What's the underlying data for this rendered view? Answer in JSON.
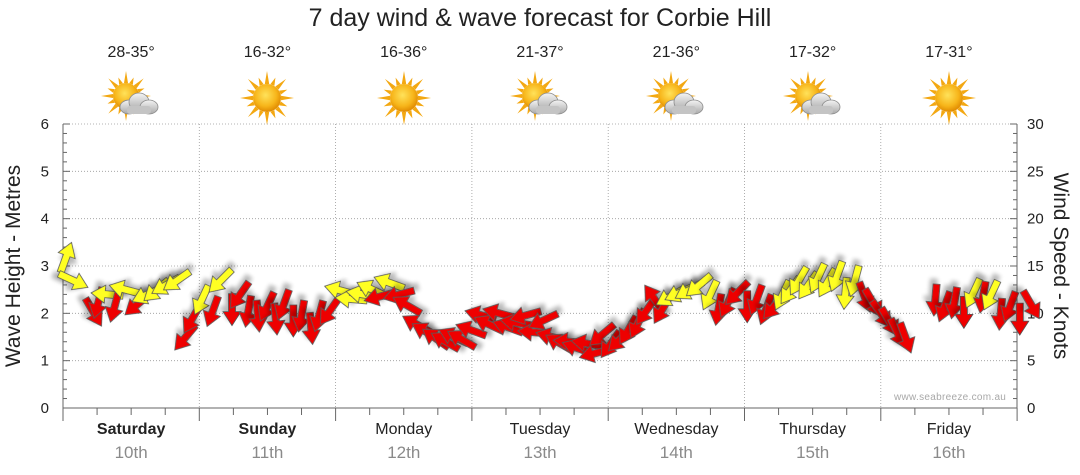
{
  "chart_data": {
    "type": "scatter",
    "title": "7 day wind & wave forecast for Corbie Hill",
    "y_left": {
      "label": "Wave Height - Metres",
      "min": 0,
      "max": 6,
      "ticks": [
        0,
        1,
        2,
        3,
        4,
        5,
        6
      ]
    },
    "y_right": {
      "label": "Wind Speed - Knots",
      "min": 0,
      "max": 30,
      "ticks": [
        0,
        5,
        10,
        15,
        20,
        25,
        30
      ]
    },
    "grid": true,
    "days": [
      {
        "name": "Saturday",
        "date": "10th",
        "temp": "28-35°",
        "weather_icon": "partly-cloudy-icon",
        "bold": true
      },
      {
        "name": "Sunday",
        "date": "11th",
        "temp": "16-32°",
        "weather_icon": "sunny-icon",
        "bold": true
      },
      {
        "name": "Monday",
        "date": "12th",
        "temp": "16-36°",
        "weather_icon": "sunny-icon",
        "bold": false
      },
      {
        "name": "Tuesday",
        "date": "13th",
        "temp": "21-37°",
        "weather_icon": "partly-cloudy-icon",
        "bold": false
      },
      {
        "name": "Wednesday",
        "date": "14th",
        "temp": "21-36°",
        "weather_icon": "partly-cloudy-icon",
        "bold": false
      },
      {
        "name": "Thursday",
        "date": "15th",
        "temp": "17-32°",
        "weather_icon": "partly-cloudy-icon",
        "bold": false
      },
      {
        "name": "Friday",
        "date": "16th",
        "temp": "17-31°",
        "weather_icon": "sunny-icon",
        "bold": false
      }
    ],
    "series": [
      {
        "name": "Wind (yellow = lighter, red = stronger)",
        "encoding": "arrows point in wind direction; vertical position = wind speed (knots, right axis)",
        "points": [
          {
            "day": 0.02,
            "knots": 15.8,
            "dir": 20,
            "color": "yellow"
          },
          {
            "day": 0.07,
            "knots": 13.5,
            "dir": 115,
            "color": "yellow"
          },
          {
            "day": 0.22,
            "knots": 10.2,
            "dir": 150,
            "color": "red"
          },
          {
            "day": 0.26,
            "knots": 11.2,
            "dir": 195,
            "color": "red"
          },
          {
            "day": 0.33,
            "knots": 12.0,
            "dir": 275,
            "color": "yellow"
          },
          {
            "day": 0.38,
            "knots": 10.8,
            "dir": 195,
            "color": "red"
          },
          {
            "day": 0.46,
            "knots": 12.5,
            "dir": 285,
            "color": "yellow"
          },
          {
            "day": 0.55,
            "knots": 11.0,
            "dir": 230,
            "color": "red"
          },
          {
            "day": 0.62,
            "knots": 12.0,
            "dir": 245,
            "color": "yellow"
          },
          {
            "day": 0.69,
            "knots": 12.5,
            "dir": 230,
            "color": "yellow"
          },
          {
            "day": 0.76,
            "knots": 13.0,
            "dir": 240,
            "color": "yellow"
          },
          {
            "day": 0.84,
            "knots": 13.5,
            "dir": 235,
            "color": "yellow"
          },
          {
            "day": 0.9,
            "knots": 7.5,
            "dir": 220,
            "color": "red"
          },
          {
            "day": 0.95,
            "knots": 9.5,
            "dir": 210,
            "color": "red"
          },
          {
            "day": 1.02,
            "knots": 11.5,
            "dir": 205,
            "color": "yellow"
          },
          {
            "day": 1.1,
            "knots": 10.3,
            "dir": 200,
            "color": "red"
          },
          {
            "day": 1.16,
            "knots": 13.5,
            "dir": 225,
            "color": "yellow"
          },
          {
            "day": 1.24,
            "knots": 10.5,
            "dir": 180,
            "color": "red"
          },
          {
            "day": 1.3,
            "knots": 12.0,
            "dir": 215,
            "color": "red"
          },
          {
            "day": 1.36,
            "knots": 10.3,
            "dir": 190,
            "color": "red"
          },
          {
            "day": 1.43,
            "knots": 9.8,
            "dir": 175,
            "color": "red"
          },
          {
            "day": 1.5,
            "knots": 10.8,
            "dir": 205,
            "color": "red"
          },
          {
            "day": 1.56,
            "knots": 9.5,
            "dir": 175,
            "color": "red"
          },
          {
            "day": 1.62,
            "knots": 11.0,
            "dir": 200,
            "color": "red"
          },
          {
            "day": 1.69,
            "knots": 9.3,
            "dir": 180,
            "color": "red"
          },
          {
            "day": 1.75,
            "knots": 9.8,
            "dir": 190,
            "color": "red"
          },
          {
            "day": 1.82,
            "knots": 8.5,
            "dir": 175,
            "color": "red"
          },
          {
            "day": 1.88,
            "knots": 9.8,
            "dir": 195,
            "color": "red"
          },
          {
            "day": 1.96,
            "knots": 10.3,
            "dir": 215,
            "color": "red"
          },
          {
            "day": 2.04,
            "knots": 12.4,
            "dir": 285,
            "color": "yellow"
          },
          {
            "day": 2.12,
            "knots": 11.5,
            "dir": 275,
            "color": "yellow"
          },
          {
            "day": 2.2,
            "knots": 12.0,
            "dir": 280,
            "color": "yellow"
          },
          {
            "day": 2.27,
            "knots": 12.5,
            "dir": 295,
            "color": "yellow"
          },
          {
            "day": 2.33,
            "knots": 11.8,
            "dir": 255,
            "color": "red"
          },
          {
            "day": 2.4,
            "knots": 13.2,
            "dir": 290,
            "color": "yellow"
          },
          {
            "day": 2.47,
            "knots": 12.0,
            "dir": 255,
            "color": "red"
          },
          {
            "day": 2.53,
            "knots": 10.8,
            "dir": 300,
            "color": "red"
          },
          {
            "day": 2.6,
            "knots": 8.8,
            "dir": 300,
            "color": "red"
          },
          {
            "day": 2.67,
            "knots": 8.0,
            "dir": 300,
            "color": "red"
          },
          {
            "day": 2.74,
            "knots": 7.3,
            "dir": 305,
            "color": "red"
          },
          {
            "day": 2.81,
            "knots": 7.0,
            "dir": 300,
            "color": "red"
          },
          {
            "day": 2.87,
            "knots": 7.5,
            "dir": 295,
            "color": "red"
          },
          {
            "day": 2.93,
            "knots": 7.2,
            "dir": 300,
            "color": "red"
          },
          {
            "day": 3.0,
            "knots": 8.2,
            "dir": 290,
            "color": "red"
          },
          {
            "day": 3.07,
            "knots": 9.8,
            "dir": 285,
            "color": "red"
          },
          {
            "day": 3.13,
            "knots": 8.8,
            "dir": 295,
            "color": "red"
          },
          {
            "day": 3.2,
            "knots": 10.0,
            "dir": 285,
            "color": "red"
          },
          {
            "day": 3.27,
            "knots": 8.5,
            "dir": 290,
            "color": "red"
          },
          {
            "day": 3.33,
            "knots": 9.0,
            "dir": 280,
            "color": "red"
          },
          {
            "day": 3.4,
            "knots": 9.8,
            "dir": 255,
            "color": "red"
          },
          {
            "day": 3.46,
            "knots": 8.0,
            "dir": 275,
            "color": "red"
          },
          {
            "day": 3.53,
            "knots": 9.3,
            "dir": 245,
            "color": "red"
          },
          {
            "day": 3.59,
            "knots": 7.5,
            "dir": 285,
            "color": "red"
          },
          {
            "day": 3.65,
            "knots": 6.8,
            "dir": 300,
            "color": "red"
          },
          {
            "day": 3.72,
            "knots": 7.0,
            "dir": 275,
            "color": "red"
          },
          {
            "day": 3.78,
            "knots": 6.3,
            "dir": 290,
            "color": "red"
          },
          {
            "day": 3.85,
            "knots": 6.8,
            "dir": 280,
            "color": "red"
          },
          {
            "day": 3.91,
            "knots": 5.8,
            "dir": 255,
            "color": "red"
          },
          {
            "day": 3.96,
            "knots": 7.8,
            "dir": 230,
            "color": "red"
          },
          {
            "day": 4.02,
            "knots": 6.8,
            "dir": 215,
            "color": "red"
          },
          {
            "day": 4.09,
            "knots": 7.3,
            "dir": 225,
            "color": "red"
          },
          {
            "day": 4.15,
            "knots": 8.3,
            "dir": 210,
            "color": "red"
          },
          {
            "day": 4.22,
            "knots": 9.0,
            "dir": 205,
            "color": "red"
          },
          {
            "day": 4.28,
            "knots": 10.3,
            "dir": 215,
            "color": "red"
          },
          {
            "day": 4.34,
            "knots": 11.5,
            "dir": 325,
            "color": "red"
          },
          {
            "day": 4.4,
            "knots": 10.5,
            "dir": 210,
            "color": "red"
          },
          {
            "day": 4.46,
            "knots": 11.8,
            "dir": 240,
            "color": "yellow"
          },
          {
            "day": 4.53,
            "knots": 12.2,
            "dir": 245,
            "color": "yellow"
          },
          {
            "day": 4.6,
            "knots": 12.5,
            "dir": 240,
            "color": "yellow"
          },
          {
            "day": 4.67,
            "knots": 13.0,
            "dir": 230,
            "color": "yellow"
          },
          {
            "day": 4.75,
            "knots": 12.0,
            "dir": 205,
            "color": "yellow"
          },
          {
            "day": 4.81,
            "knots": 10.5,
            "dir": 190,
            "color": "red"
          },
          {
            "day": 4.88,
            "knots": 11.2,
            "dir": 205,
            "color": "red"
          },
          {
            "day": 4.95,
            "knots": 12.2,
            "dir": 225,
            "color": "red"
          },
          {
            "day": 5.02,
            "knots": 10.8,
            "dir": 180,
            "color": "red"
          },
          {
            "day": 5.09,
            "knots": 11.5,
            "dir": 200,
            "color": "red"
          },
          {
            "day": 5.16,
            "knots": 10.5,
            "dir": 200,
            "color": "red"
          },
          {
            "day": 5.22,
            "knots": 10.8,
            "dir": 220,
            "color": "red"
          },
          {
            "day": 5.28,
            "knots": 12.0,
            "dir": 205,
            "color": "yellow"
          },
          {
            "day": 5.34,
            "knots": 12.5,
            "dir": 215,
            "color": "yellow"
          },
          {
            "day": 5.4,
            "knots": 13.5,
            "dir": 210,
            "color": "yellow"
          },
          {
            "day": 5.47,
            "knots": 13.0,
            "dir": 215,
            "color": "yellow"
          },
          {
            "day": 5.54,
            "knots": 13.8,
            "dir": 205,
            "color": "yellow"
          },
          {
            "day": 5.61,
            "knots": 13.3,
            "dir": 210,
            "color": "yellow"
          },
          {
            "day": 5.68,
            "knots": 14.0,
            "dir": 200,
            "color": "yellow"
          },
          {
            "day": 5.74,
            "knots": 12.2,
            "dir": 185,
            "color": "yellow"
          },
          {
            "day": 5.81,
            "knots": 13.5,
            "dir": 195,
            "color": "yellow"
          },
          {
            "day": 5.88,
            "knots": 11.8,
            "dir": 160,
            "color": "red"
          },
          {
            "day": 5.94,
            "knots": 11.2,
            "dir": 150,
            "color": "red"
          },
          {
            "day": 6.0,
            "knots": 10.0,
            "dir": 145,
            "color": "red"
          },
          {
            "day": 6.06,
            "knots": 9.2,
            "dir": 150,
            "color": "red"
          },
          {
            "day": 6.12,
            "knots": 8.0,
            "dir": 155,
            "color": "red"
          },
          {
            "day": 6.18,
            "knots": 7.5,
            "dir": 160,
            "color": "red"
          },
          {
            "day": 6.4,
            "knots": 11.5,
            "dir": 185,
            "color": "red"
          },
          {
            "day": 6.47,
            "knots": 10.8,
            "dir": 200,
            "color": "red"
          },
          {
            "day": 6.54,
            "knots": 11.2,
            "dir": 190,
            "color": "red"
          },
          {
            "day": 6.61,
            "knots": 10.2,
            "dir": 180,
            "color": "red"
          },
          {
            "day": 6.68,
            "knots": 12.2,
            "dir": 205,
            "color": "yellow"
          },
          {
            "day": 6.75,
            "knots": 11.8,
            "dir": 190,
            "color": "red"
          },
          {
            "day": 6.81,
            "knots": 12.0,
            "dir": 205,
            "color": "yellow"
          },
          {
            "day": 6.88,
            "knots": 10.0,
            "dir": 185,
            "color": "red"
          },
          {
            "day": 6.95,
            "knots": 10.8,
            "dir": 200,
            "color": "red"
          },
          {
            "day": 7.02,
            "knots": 9.5,
            "dir": 180,
            "color": "red"
          },
          {
            "day": 7.1,
            "knots": 11.0,
            "dir": 150,
            "color": "red"
          }
        ]
      }
    ],
    "colors": {
      "light_wind": "#ffff22",
      "strong_wind": "#ee0000",
      "outline": "#555555",
      "grid": "#9a9a9a"
    }
  },
  "watermark": "www.seabreeze.com.au"
}
